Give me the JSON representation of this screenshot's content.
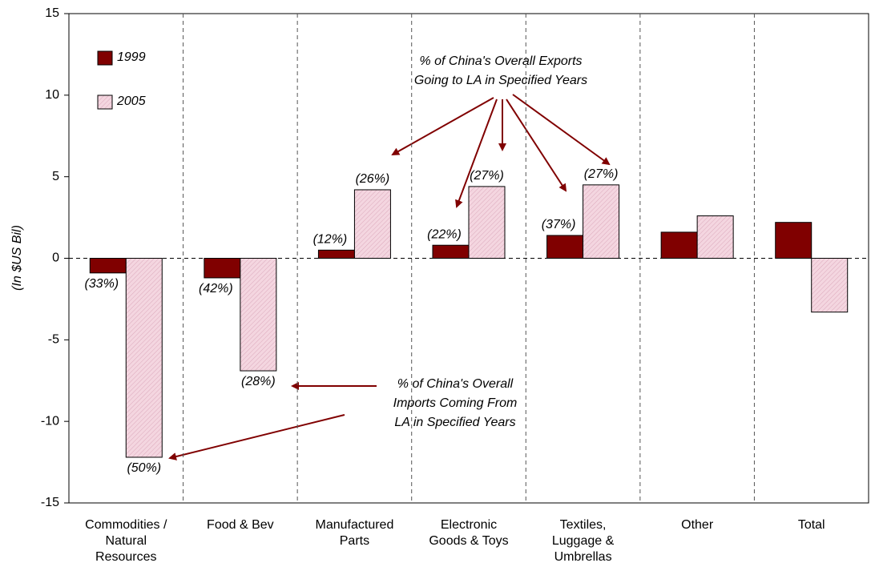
{
  "chart_data": {
    "type": "bar",
    "y_label": "(In $US Bil)",
    "categories": [
      [
        "Commodities /",
        "Natural",
        "Resources"
      ],
      [
        "Food & Bev"
      ],
      [
        "Manufactured",
        "Parts"
      ],
      [
        "Electronic",
        "Goods & Toys"
      ],
      [
        "Textiles,",
        "Luggage &",
        "Umbrellas"
      ],
      [
        "Other"
      ],
      [
        "Total"
      ]
    ],
    "series": [
      {
        "name": "1999",
        "color": "#800000",
        "values": [
          -0.9,
          -1.2,
          0.5,
          0.8,
          1.4,
          1.6,
          2.2
        ],
        "labels": [
          "(33%)",
          "(42%)",
          "(12%)",
          "(22%)",
          "(37%)",
          null,
          null
        ]
      },
      {
        "name": "2005",
        "color": "#f4d6e0",
        "values": [
          -12.2,
          -6.9,
          4.2,
          4.4,
          4.5,
          2.6,
          -3.3
        ],
        "labels": [
          "(50%)",
          "(28%)",
          "(26%)",
          "(27%)",
          "(27%)",
          null,
          null
        ]
      }
    ],
    "annotations": [
      [
        "% of China's Overall Exports",
        "Going to LA in Specified Years"
      ],
      [
        "% of China's Overall",
        "Imports Coming From",
        "LA in Specified Years"
      ]
    ],
    "ylim": [
      -15,
      15
    ],
    "yticks": [
      -15,
      -10,
      -5,
      0,
      5,
      10,
      15
    ],
    "legend": "top-left"
  }
}
